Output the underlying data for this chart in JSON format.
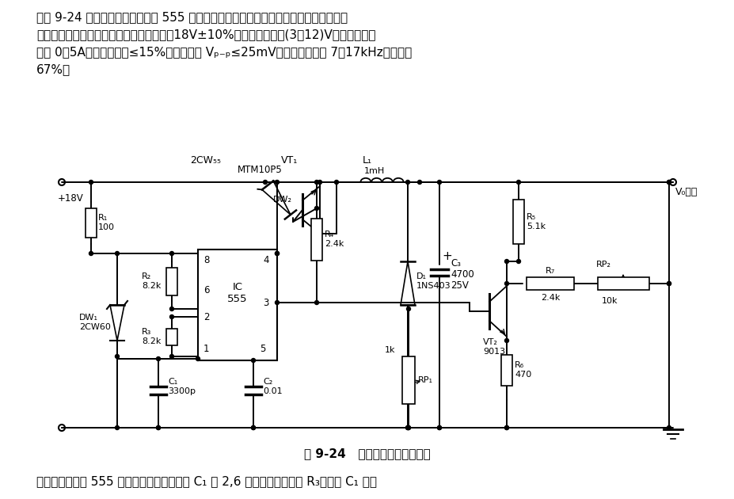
{
  "bg_color": "#ffffff",
  "line_color": "#000000",
  "header_lines": [
    "如图 9-24 所示，本开关电源是用 555 等组成的脉宽调整电路构成串联式稳压源。电路的",
    "控制线性和对称性较好。在输人直流电压＋18V±10%时，输出直流＋(3～12)V，连续可调；",
    "电流 0～5A；电压稳定度≤15%；纹波电压 Vₚ₋ₚ≤25mV；开关工作频率 7～17kHz；效率约",
    "67%。"
  ],
  "caption": "图 9-24   串联型开关稳压源电路",
  "footer": "本电路与常见的 555 脉宽调制器相比，是在 C₁ 与 2,6 脚之间加接了电阱 R₃，减小 C₁ 上的",
  "labels": {
    "plus18v": "+18V",
    "r1": "R₁\n100",
    "r2": "R₂\n8.2k",
    "r3": "R₃\n8.2k",
    "r4": "R₄\n2.4k",
    "r5": "R₅\n5.1k",
    "r6": "R₆\n470",
    "r7": "R₇\n2.4k",
    "rp1": "RP₁",
    "rp2": "RP₂\n10k",
    "c1": "C₁\n3300p",
    "c2": "C₂\n0.01",
    "c3_label": "C₃\n4700\n25V",
    "d1": "D₁\n1NS403",
    "dw1": "DW₁\n2CW60",
    "dw2": "DW₂",
    "ic": "IC\n555",
    "vt1_label": "VT₁",
    "vt2_label": "VT₂\n9013",
    "l1_label": "L₁\n1mH",
    "mtm": "MTM10P5",
    "cw55": "2CW₅₅",
    "vt1top": "VT₁",
    "l1top": "L₁",
    "vo": "V₀输出",
    "1k": "1k",
    "pin8": "8",
    "pin4": "4",
    "pin6": "6",
    "pin3": "3",
    "pin2": "2",
    "pin1": "1",
    "pin5": "5"
  }
}
